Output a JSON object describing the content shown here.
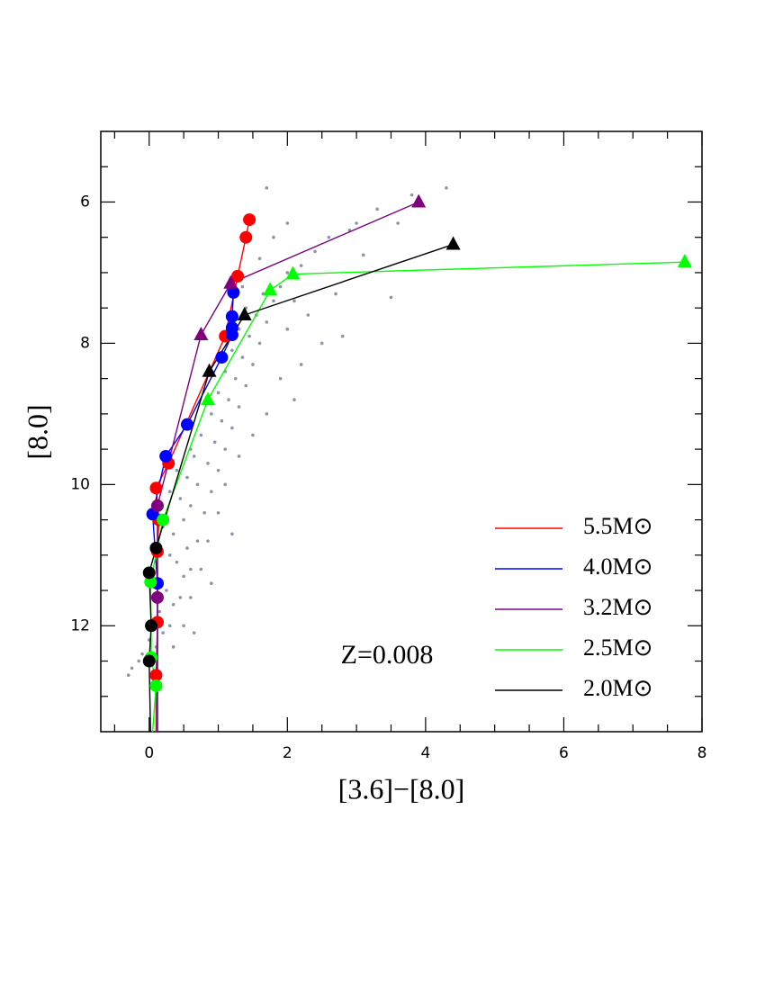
{
  "chart_data": {
    "type": "scatter",
    "x_label": "[3.6]−[8.0]",
    "y_label": "[8.0]",
    "annotation": "Z=0.008",
    "xlim": [
      -0.7,
      8
    ],
    "ylim": [
      13.5,
      5
    ],
    "y_inverted": true,
    "xticks": [
      0,
      2,
      4,
      6,
      8
    ],
    "yticks": [
      6,
      8,
      10,
      12
    ],
    "xminor": [
      -0.5,
      0.5,
      1,
      1.5,
      2.5,
      3,
      3.5,
      4.5,
      5,
      5.5,
      6.5,
      7,
      7.5
    ],
    "yminor": [
      5.5,
      6.5,
      7,
      7.5,
      8.5,
      9,
      9.5,
      10.5,
      11,
      11.5,
      12.5,
      13
    ],
    "legend": "lower right",
    "points": {
      "color": "#8d94a8",
      "x": [
        -0.3,
        -0.25,
        -0.1,
        0,
        0.1,
        0.2,
        0.3,
        0.15,
        0.35,
        0.45,
        0.25,
        0.5,
        0.6,
        0.4,
        0.3,
        0.55,
        0.7,
        0.35,
        0.5,
        0.8,
        0.6,
        0.45,
        0.9,
        0.7,
        0.55,
        1.0,
        0.85,
        0.65,
        1.1,
        0.95,
        0.75,
        1.2,
        1.05,
        0.9,
        1.3,
        1.15,
        1.0,
        1.4,
        1.25,
        1.1,
        1.5,
        1.35,
        1.2,
        1.6,
        1.45,
        1.3,
        1.7,
        1.55,
        1.4,
        1.8,
        1.65,
        1.9,
        2.0,
        2.2,
        2.4,
        2.6,
        2.9,
        3.0,
        3.3,
        3.6,
        3.8,
        4.3,
        3.1,
        2.7,
        2.3,
        2.0,
        2.5,
        2.2,
        1.9,
        2.1,
        1.7,
        1.5,
        1.3,
        1.1,
        1.0,
        0.85,
        0.75,
        0.6,
        0.5,
        0.35,
        1.8,
        1.6,
        2.8,
        3.5,
        1.2,
        0.9,
        -0.15,
        0.05,
        0.1,
        0.2,
        0.3,
        0.4,
        0.6,
        2.0,
        1.7,
        2.1,
        1.35,
        0.65
      ],
      "y": [
        12.7,
        12.6,
        12.4,
        12.2,
        12.3,
        12.1,
        12.0,
        11.8,
        11.7,
        11.6,
        11.5,
        11.3,
        11.2,
        11.1,
        11.0,
        10.9,
        10.8,
        10.7,
        10.5,
        10.4,
        10.3,
        10.2,
        10.1,
        10.0,
        9.9,
        9.8,
        9.7,
        9.6,
        9.5,
        9.4,
        9.3,
        9.2,
        9.1,
        9.0,
        8.9,
        8.8,
        8.7,
        8.6,
        8.5,
        8.4,
        8.3,
        8.2,
        8.1,
        8.0,
        7.9,
        7.8,
        7.7,
        7.6,
        7.5,
        7.4,
        7.3,
        7.2,
        7.0,
        6.9,
        6.7,
        6.5,
        6.4,
        6.3,
        6.1,
        6.3,
        5.9,
        5.8,
        6.75,
        7.3,
        7.6,
        7.8,
        8.0,
        8.3,
        8.5,
        8.8,
        9.0,
        9.3,
        9.6,
        10.0,
        10.4,
        10.8,
        11.2,
        11.6,
        12.0,
        12.3,
        6.5,
        6.8,
        7.9,
        7.35,
        10.7,
        11.4,
        12.5,
        11.6,
        11.0,
        10.6,
        10.1,
        9.8,
        9.5,
        6.3,
        5.8,
        7.4,
        7.2,
        12.1
      ]
    },
    "series": [
      {
        "name": "5.5M⊙",
        "color": "#ff0000",
        "x": [
          0.1,
          0.1,
          0.12,
          0.12,
          0.14,
          0.1,
          0.28,
          1.1,
          1.28,
          1.4,
          1.45
        ],
        "y": [
          13.5,
          12.7,
          11.95,
          10.95,
          10.5,
          10.05,
          9.7,
          7.9,
          7.05,
          6.5,
          6.25
        ],
        "markers": [
          null,
          "circle",
          "circle",
          "circle",
          "circle",
          "circle",
          "circle",
          "circle",
          "circle",
          "circle",
          "circle"
        ]
      },
      {
        "name": "4.0M⊙",
        "color": "#0000ff",
        "x": [
          0.12,
          0.12,
          0.05,
          0.24,
          0.55,
          1.05,
          1.2,
          1.2,
          1.2,
          1.22
        ],
        "y": [
          13.5,
          11.4,
          10.42,
          9.6,
          9.15,
          8.2,
          7.88,
          7.78,
          7.62,
          7.28
        ],
        "markers": [
          null,
          "circle",
          "circle",
          "circle",
          "circle",
          "circle",
          "circle",
          "circle",
          "circle",
          "circle"
        ]
      },
      {
        "name": "3.2M⊙",
        "color": "#800080",
        "x": [
          0.12,
          0.12,
          0.12,
          0.75,
          1.18,
          3.9
        ],
        "y": [
          13.5,
          11.6,
          10.3,
          7.88,
          7.15,
          6.0
        ],
        "markers": [
          null,
          "circle",
          "circle",
          "triangle",
          "triangle",
          "triangle"
        ]
      },
      {
        "name": "2.5M⊙",
        "color": "#00ff00",
        "x": [
          0.05,
          0.1,
          0.03,
          0.02,
          0.2,
          0.85,
          1.75,
          2.08,
          7.75
        ],
        "y": [
          13.5,
          12.85,
          12.45,
          11.38,
          10.5,
          8.8,
          7.25,
          7.02,
          6.85
        ],
        "markers": [
          null,
          "circle",
          "circle",
          "circle",
          "circle",
          "triangle",
          "triangle",
          "triangle",
          "triangle"
        ]
      },
      {
        "name": "2.0M⊙",
        "color": "#000000",
        "x": [
          0.02,
          0,
          0.03,
          0,
          0.1,
          0.87,
          1.38,
          4.4
        ],
        "y": [
          13.5,
          12.5,
          12.0,
          11.25,
          10.9,
          8.4,
          7.6,
          6.6
        ],
        "markers": [
          null,
          "circle",
          "circle",
          "circle",
          "circle",
          "triangle",
          "triangle",
          "triangle"
        ]
      }
    ]
  }
}
